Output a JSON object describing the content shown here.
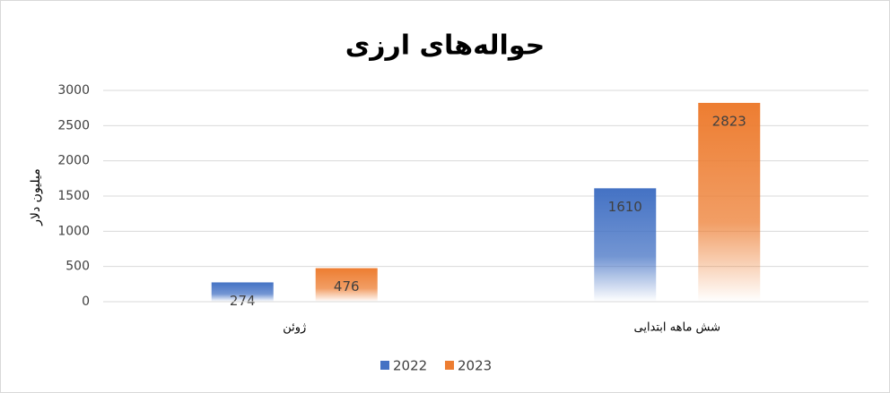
{
  "chart_data": {
    "type": "bar",
    "title": "حواله‌های ارزی",
    "y_label": "میلیون دلار",
    "categories": [
      "ژوئن",
      "شش ماهه ابتدایی"
    ],
    "series": [
      {
        "name": "2022",
        "color": "#4472c4",
        "values": [
          274,
          1610
        ]
      },
      {
        "name": "2023",
        "color": "#ed7d31",
        "values": [
          476,
          2823
        ]
      }
    ],
    "ylim": [
      0,
      3000
    ],
    "yticks": [
      0,
      500,
      1000,
      1500,
      2000,
      2500,
      3000
    ],
    "grid": true,
    "legend": "bottom"
  }
}
